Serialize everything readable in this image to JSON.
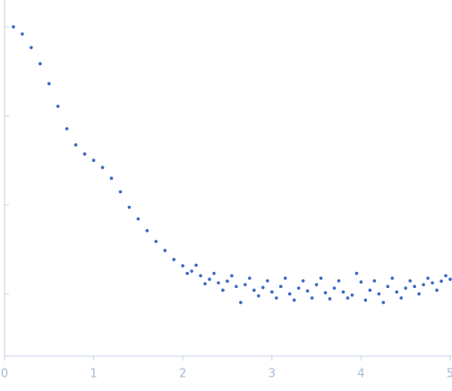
{
  "chart_data": {
    "type": "scatter",
    "color": "#3b68c0",
    "log_y": true,
    "x": [
      0.1,
      0.2,
      0.3,
      0.4,
      0.5,
      0.6,
      0.7,
      0.8,
      0.9,
      1.0,
      1.1,
      1.2,
      1.3,
      1.4,
      1.5,
      1.6,
      1.7,
      1.8,
      1.9,
      2.0,
      2.05,
      2.1,
      2.15,
      2.2,
      2.25,
      2.3,
      2.35,
      2.4,
      2.45,
      2.5,
      2.55,
      2.6,
      2.65,
      2.7,
      2.75,
      2.8,
      2.85,
      2.9,
      2.95,
      3.0,
      3.05,
      3.1,
      3.15,
      3.2,
      3.25,
      3.3,
      3.35,
      3.4,
      3.45,
      3.5,
      3.55,
      3.6,
      3.65,
      3.7,
      3.75,
      3.8,
      3.85,
      3.9,
      3.95,
      4.0,
      4.05,
      4.1,
      4.15,
      4.2,
      4.25,
      4.3,
      4.35,
      4.4,
      4.45,
      4.5,
      4.55,
      4.6,
      4.65,
      4.7,
      4.75,
      4.8,
      4.85,
      4.9,
      4.95,
      5.0
    ],
    "values": [
      1,
      0.83,
      0.585,
      0.385,
      0.23,
      0.128,
      0.0716,
      0.0471,
      0.0373,
      0.0316,
      0.0263,
      0.0199,
      0.014,
      0.0094,
      0.00695,
      0.00513,
      0.00388,
      0.00307,
      0.00243,
      0.00207,
      0.0017,
      0.0018,
      0.0021,
      0.0016,
      0.0013,
      0.00146,
      0.0017,
      0.00133,
      0.0011,
      0.00139,
      0.0016,
      0.00121,
      0.0008,
      0.00127,
      0.0015,
      0.0011,
      0.00095,
      0.00118,
      0.0014,
      0.00105,
      0.0009,
      0.00121,
      0.0015,
      0.001,
      0.00085,
      0.00116,
      0.0014,
      0.00108,
      0.0009,
      0.00127,
      0.0015,
      0.00103,
      0.00088,
      0.00116,
      0.0014,
      0.00105,
      0.0009,
      0.00097,
      0.0017,
      0.00136,
      0.00085,
      0.0011,
      0.0014,
      0.001,
      0.0008,
      0.00121,
      0.0015,
      0.00105,
      0.0009,
      0.00116,
      0.0014,
      0.00121,
      0.001,
      0.00127,
      0.0015,
      0.00133,
      0.0011,
      0.00139,
      0.0016,
      0.00146
    ],
    "xlim": [
      0,
      5
    ],
    "xticks": [
      0,
      1,
      2,
      3,
      4,
      5
    ],
    "ylim": [
      0.0002,
      2
    ],
    "yticks": [
      0.001,
      0.01,
      0.1,
      1
    ]
  }
}
